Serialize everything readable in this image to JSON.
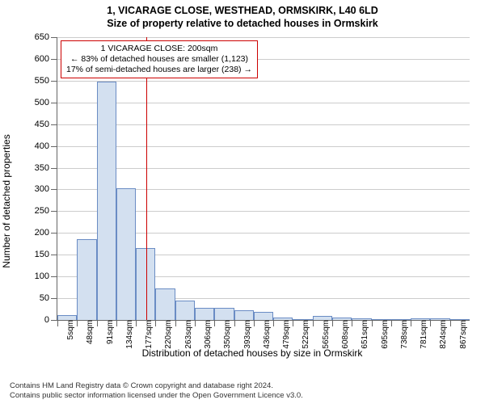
{
  "title": "1, VICARAGE CLOSE, WESTHEAD, ORMSKIRK, L40 6LD",
  "subtitle": "Size of property relative to detached houses in Ormskirk",
  "x_axis_label": "Distribution of detached houses by size in Ormskirk",
  "y_axis_label": "Number of detached properties",
  "chart": {
    "type": "histogram",
    "ylim": [
      0,
      650
    ],
    "ytick_step": 50,
    "yticks": [
      0,
      50,
      100,
      150,
      200,
      250,
      300,
      350,
      400,
      450,
      500,
      550,
      600,
      650
    ],
    "x_tick_labels": [
      "5sqm",
      "48sqm",
      "91sqm",
      "134sqm",
      "177sqm",
      "220sqm",
      "263sqm",
      "306sqm",
      "350sqm",
      "393sqm",
      "436sqm",
      "479sqm",
      "522sqm",
      "565sqm",
      "608sqm",
      "651sqm",
      "695sqm",
      "738sqm",
      "781sqm",
      "824sqm",
      "867sqm"
    ],
    "bar_values": [
      12,
      185,
      547,
      302,
      165,
      73,
      44,
      28,
      28,
      23,
      18,
      5,
      0,
      10,
      6,
      4,
      0,
      0,
      4,
      3,
      0
    ],
    "bar_fill": "#d3e0f0",
    "bar_stroke": "#6a8cc4",
    "grid_color": "#cccccc",
    "background_color": "#ffffff",
    "reference_line_color": "#cc0000",
    "reference_line_position_index": 4.53
  },
  "annotation": {
    "line1": "1 VICARAGE CLOSE: 200sqm",
    "line2": "← 83% of detached houses are smaller (1,123)",
    "line3": "17% of semi-detached houses are larger (238) →"
  },
  "footer": {
    "line1": "Contains HM Land Registry data © Crown copyright and database right 2024.",
    "line2": "Contains public sector information licensed under the Open Government Licence v3.0."
  }
}
